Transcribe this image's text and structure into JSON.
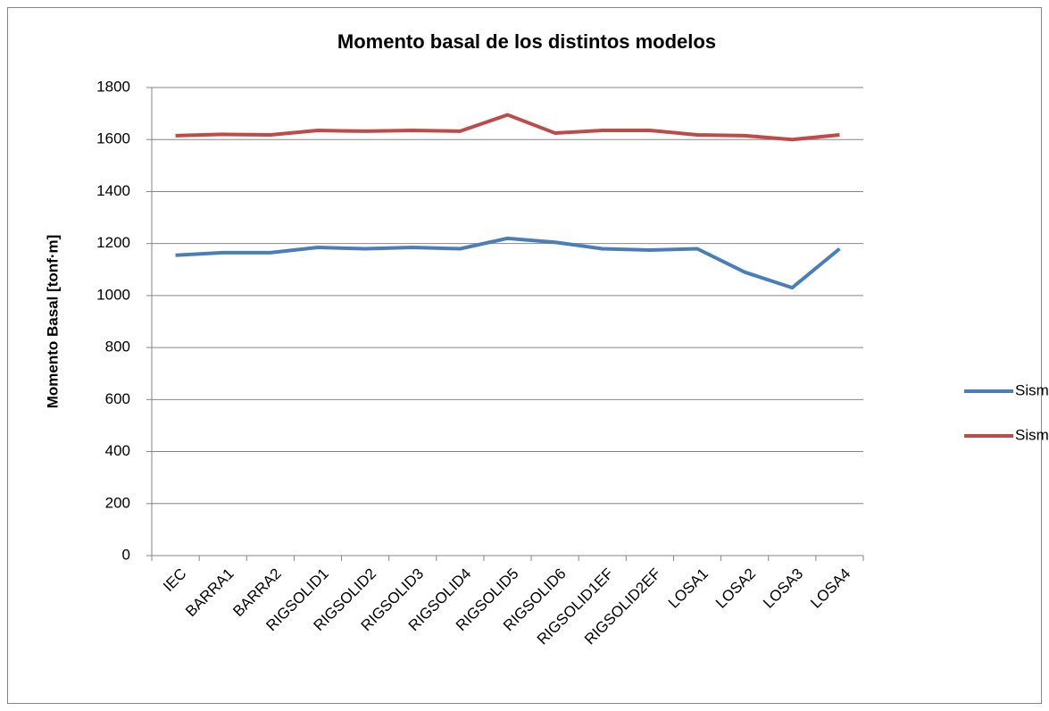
{
  "chart_data": {
    "type": "line",
    "title": "Momento basal de los distintos modelos",
    "y_label": "Momento Basal [tonf·m]",
    "categories": [
      "IEC",
      "BARRA1",
      "BARRA2",
      "RIGSOLID1",
      "RIGSOLID2",
      "RIGSOLID3",
      "RIGSOLID4",
      "RIGSOLID5",
      "RIGSOLID6",
      "RIGSOLID1EF",
      "RIGSOLID2EF",
      "LOSA1",
      "LOSA2",
      "LOSA3",
      "LOSA4"
    ],
    "series": [
      {
        "name": "Sismo X",
        "color": "#4a7ebb",
        "values": [
          1155,
          1165,
          1165,
          1185,
          1180,
          1185,
          1180,
          1220,
          1205,
          1180,
          1175,
          1180,
          1090,
          1030,
          1180
        ]
      },
      {
        "name": "Sismo Z",
        "color": "#be4b48",
        "values": [
          1615,
          1620,
          1618,
          1635,
          1632,
          1635,
          1632,
          1695,
          1625,
          1635,
          1635,
          1618,
          1615,
          1600,
          1618
        ]
      }
    ],
    "ylim": [
      0,
      1800
    ],
    "yticks": [
      0,
      200,
      400,
      600,
      800,
      1000,
      1200,
      1400,
      1600,
      1800
    ],
    "grid": true,
    "legend": "right"
  }
}
